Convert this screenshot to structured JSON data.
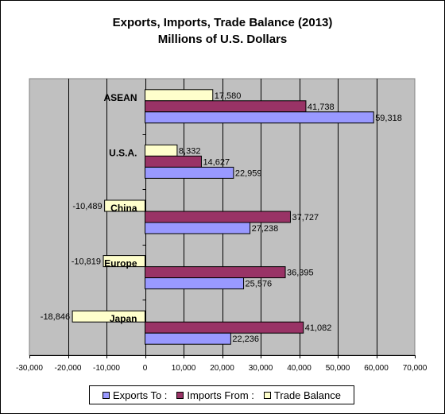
{
  "chart_data": {
    "type": "bar",
    "orientation": "horizontal",
    "title": "Exports, Imports, Trade Balance (2013)",
    "subtitle": "Millions of U.S. Dollars",
    "categories": [
      "ASEAN",
      "U.S.A.",
      "China",
      "Europe",
      "Japan"
    ],
    "series": [
      {
        "name": "Exports To :",
        "values": [
          59318,
          22959,
          27238,
          25576,
          22236
        ],
        "labels": [
          "59,318",
          "22,959",
          "27,238",
          "25,576",
          "22,236"
        ],
        "color": "#9999ff"
      },
      {
        "name": "Imports From :",
        "values": [
          41738,
          14627,
          37727,
          36395,
          41082
        ],
        "labels": [
          "41,738",
          "14,627",
          "37,727",
          "36,395",
          "41,082"
        ],
        "color": "#993366"
      },
      {
        "name": "Trade Balance",
        "values": [
          17580,
          8332,
          -10489,
          -10819,
          -18846
        ],
        "labels": [
          "17,580",
          "8,332",
          "-10,489",
          "-10,819",
          "-18,846"
        ],
        "color": "#ffffcc"
      }
    ],
    "xlim": [
      -30000,
      70000
    ],
    "xticks": [
      -30000,
      -20000,
      -10000,
      0,
      10000,
      20000,
      30000,
      40000,
      50000,
      60000,
      70000
    ],
    "xtick_labels": [
      "-30,000",
      "-20,000",
      "-10,000",
      "0",
      "10,000",
      "20,000",
      "30,000",
      "40,000",
      "50,000",
      "60,000",
      "70,000"
    ],
    "grid": "vertical",
    "plot_background": "#c0c0c0",
    "legend": "bottom"
  }
}
